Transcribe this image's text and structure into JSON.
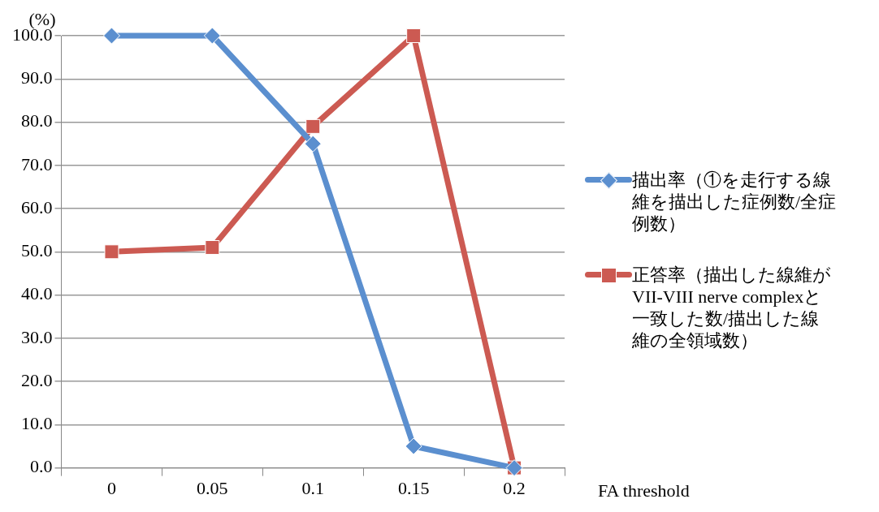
{
  "chart_data": {
    "type": "line",
    "ylabel": "(%)",
    "xlabel": "FA threshold",
    "categories": [
      "0",
      "0.05",
      "0.1",
      "0.15",
      "0.2"
    ],
    "series": [
      {
        "name": "描出率（①を走行する線維を描出した症例数/全症例数）",
        "color": "#5b8fcf",
        "marker": "diamond",
        "values": [
          100,
          100,
          75,
          5,
          0
        ]
      },
      {
        "name": "正答率（描出した線維がVII-VIII nerve complexと一致した数/描出した線維の全領域数）",
        "color": "#cc5a52",
        "marker": "square",
        "values": [
          50,
          51,
          79,
          100,
          0
        ]
      }
    ],
    "ylim": [
      0,
      100
    ],
    "yticks": [
      {
        "value": 0,
        "label": "0.0"
      },
      {
        "value": 10,
        "label": "10.0"
      },
      {
        "value": 20,
        "label": "20.0"
      },
      {
        "value": 30,
        "label": "30.0"
      },
      {
        "value": 40,
        "label": "40.0"
      },
      {
        "value": 50,
        "label": "50.0"
      },
      {
        "value": 60,
        "label": "60.0"
      },
      {
        "value": 70,
        "label": "70.0"
      },
      {
        "value": 80,
        "label": "80.0"
      },
      {
        "value": 90,
        "label": "90.0"
      },
      {
        "value": 100,
        "label": "100.0"
      }
    ],
    "grid": "y",
    "legend": "right",
    "line_style": "solid"
  }
}
